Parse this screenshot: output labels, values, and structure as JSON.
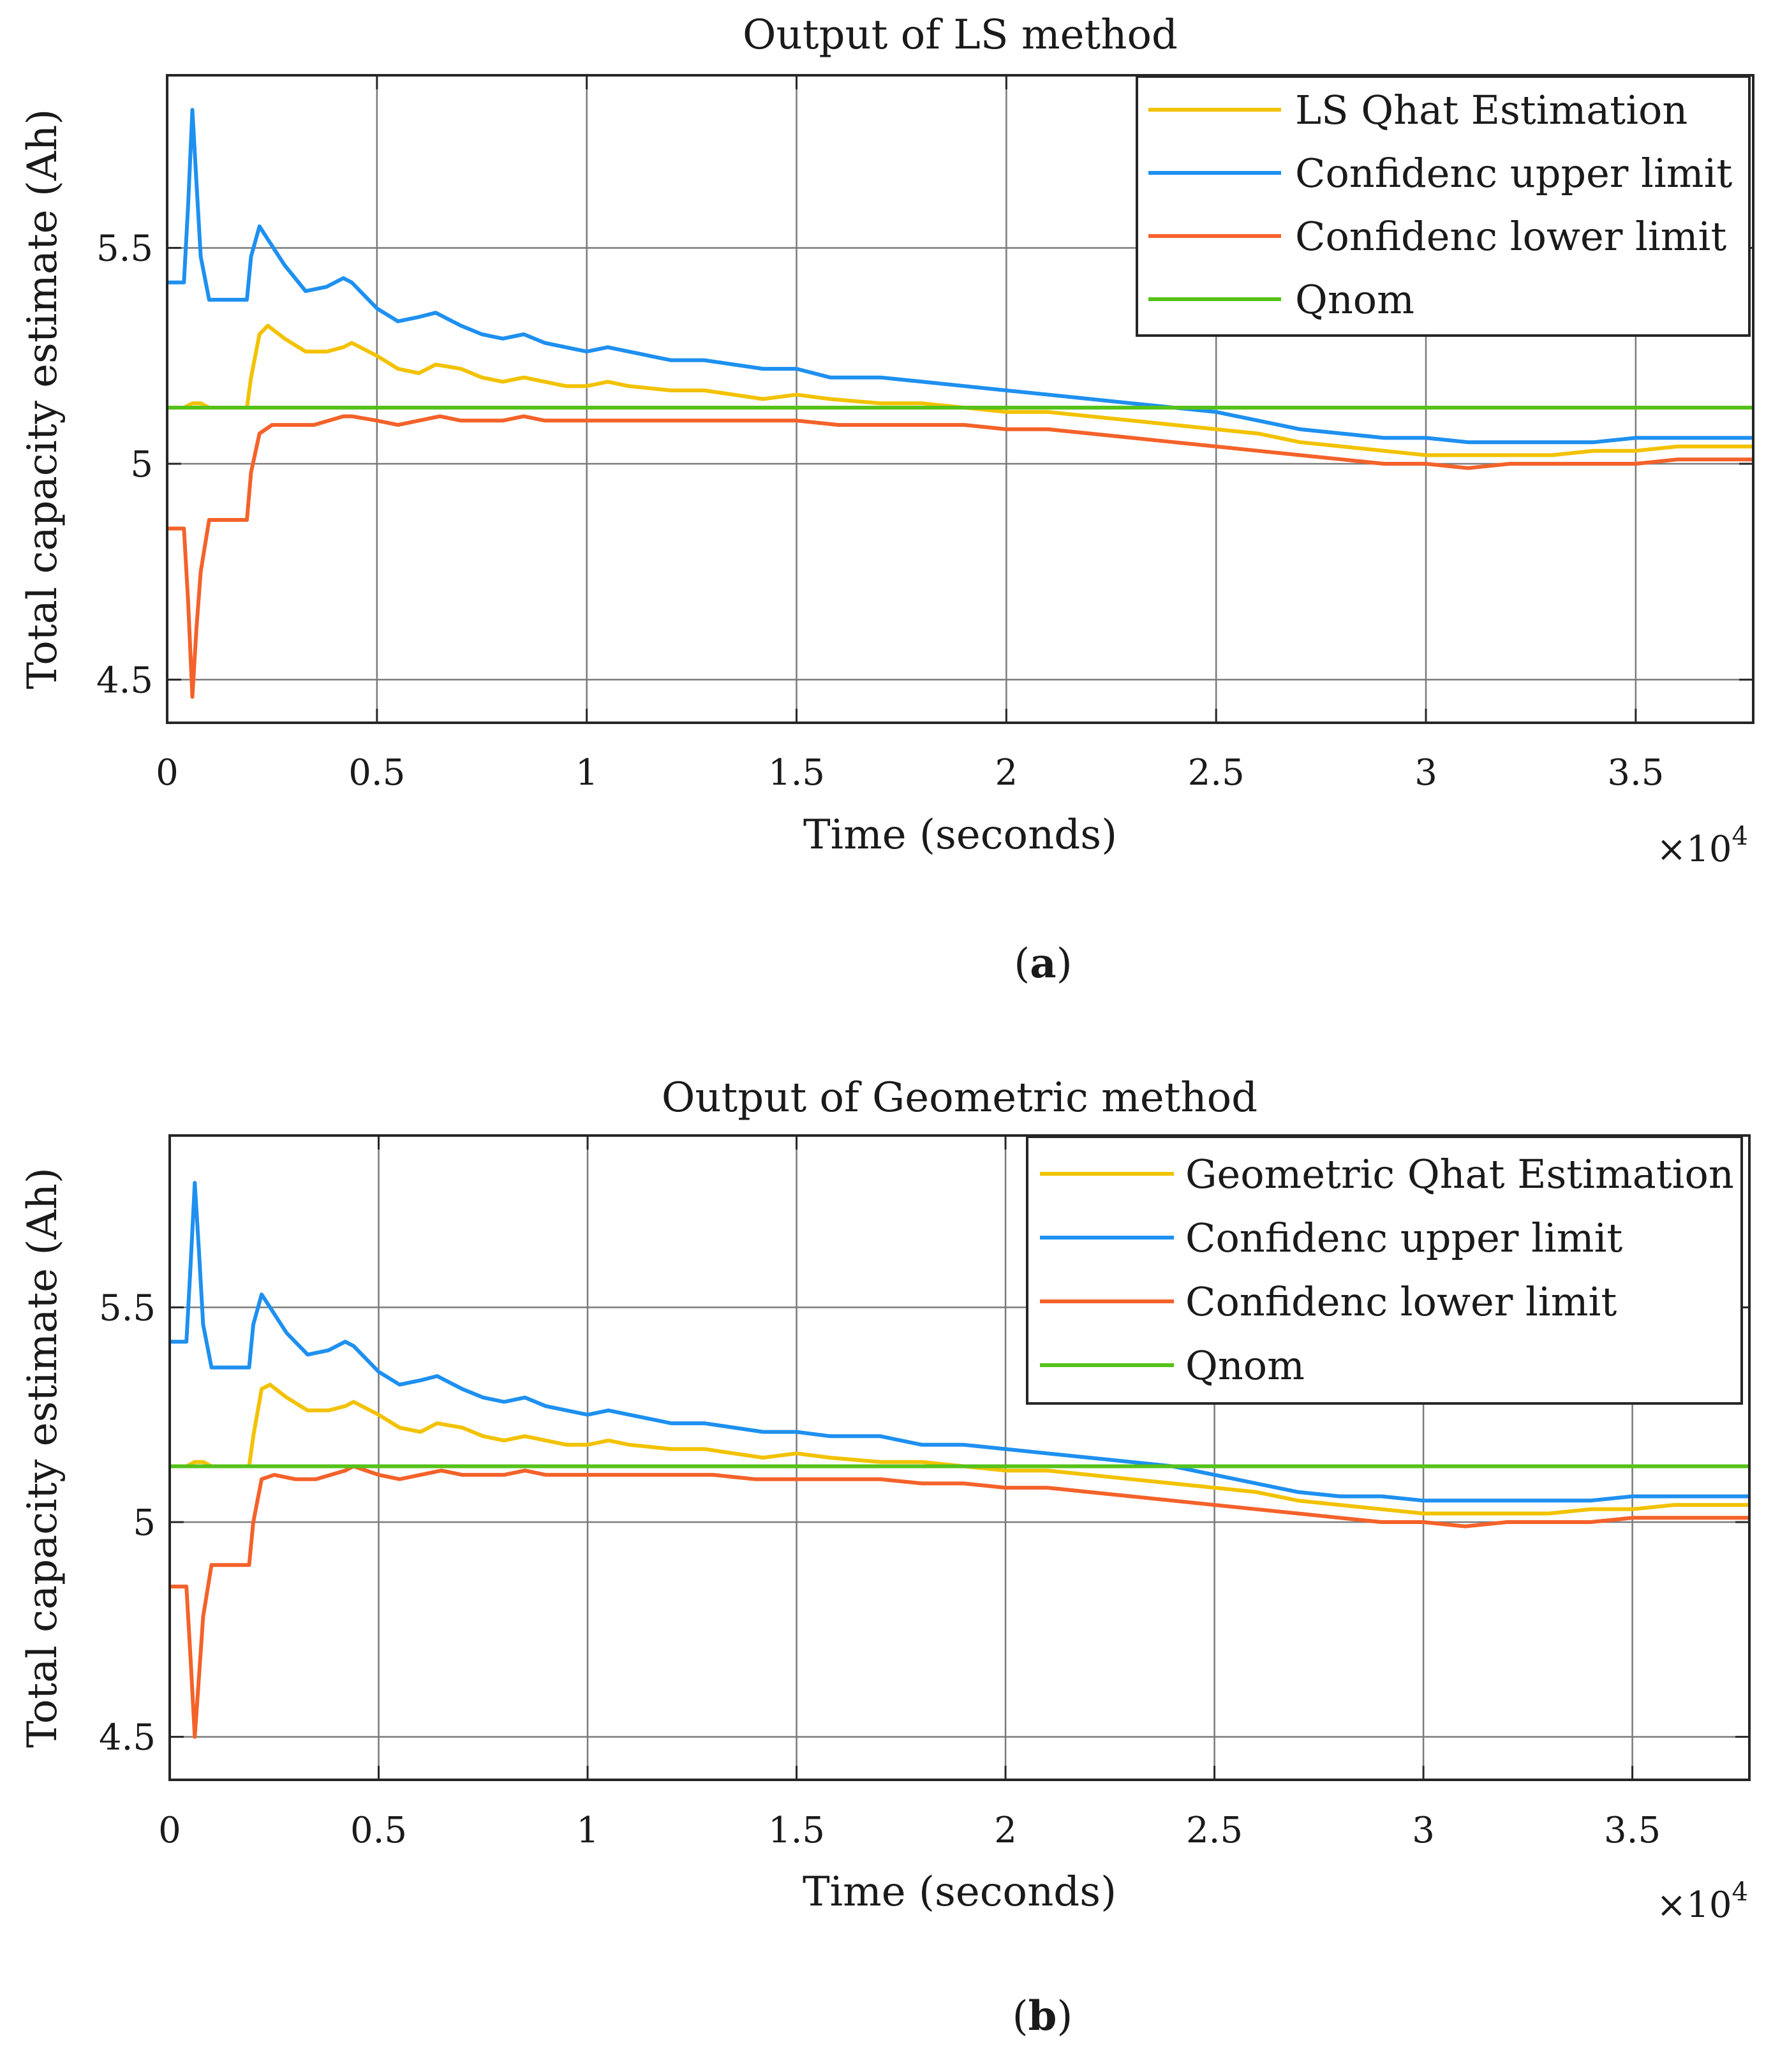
{
  "chart_data": [
    {
      "type": "line",
      "title": "Output of LS method",
      "xlabel": "Time (seconds)",
      "ylabel": "Total capacity estimate (Ah)",
      "x_multiplier": "×10",
      "x_multiplier_exp": "4",
      "xlim": [
        0,
        3.78
      ],
      "ylim": [
        4.4,
        5.9
      ],
      "xticks": [
        0,
        0.5,
        1,
        1.5,
        2,
        2.5,
        3,
        3.5
      ],
      "xtick_labels": [
        "0",
        "0.5",
        "1",
        "1.5",
        "2",
        "2.5",
        "3",
        "3.5"
      ],
      "yticks": [
        4.5,
        5,
        5.5
      ],
      "ytick_labels": [
        "4.5",
        "5",
        "5.5"
      ],
      "grid": true,
      "legend_position": "top-right",
      "caption_open": "(",
      "caption_letter": "a",
      "caption_close": ")",
      "series": [
        {
          "name": "LS Qhat Estimation",
          "color": "#f2c200",
          "x": [
            0,
            0.04,
            0.06,
            0.08,
            0.1,
            0.15,
            0.19,
            0.2,
            0.22,
            0.24,
            0.28,
            0.33,
            0.38,
            0.42,
            0.44,
            0.5,
            0.55,
            0.6,
            0.64,
            0.7,
            0.75,
            0.8,
            0.85,
            0.9,
            0.95,
            1.0,
            1.05,
            1.1,
            1.2,
            1.28,
            1.35,
            1.42,
            1.5,
            1.58,
            1.7,
            1.8,
            1.9,
            2.0,
            2.1,
            2.2,
            2.3,
            2.4,
            2.5,
            2.6,
            2.7,
            2.8,
            2.9,
            3.0,
            3.1,
            3.2,
            3.3,
            3.4,
            3.5,
            3.6,
            3.7,
            3.78
          ],
          "y": [
            5.13,
            5.13,
            5.14,
            5.14,
            5.13,
            5.13,
            5.13,
            5.2,
            5.3,
            5.32,
            5.29,
            5.26,
            5.26,
            5.27,
            5.28,
            5.25,
            5.22,
            5.21,
            5.23,
            5.22,
            5.2,
            5.19,
            5.2,
            5.19,
            5.18,
            5.18,
            5.19,
            5.18,
            5.17,
            5.17,
            5.16,
            5.15,
            5.16,
            5.15,
            5.14,
            5.14,
            5.13,
            5.12,
            5.12,
            5.11,
            5.1,
            5.09,
            5.08,
            5.07,
            5.05,
            5.04,
            5.03,
            5.02,
            5.02,
            5.02,
            5.02,
            5.03,
            5.03,
            5.04,
            5.04,
            5.04
          ]
        },
        {
          "name": "Confidenc upper limit",
          "color": "#1e90f0",
          "x": [
            0,
            0.04,
            0.05,
            0.06,
            0.07,
            0.08,
            0.1,
            0.12,
            0.15,
            0.19,
            0.2,
            0.22,
            0.24,
            0.28,
            0.33,
            0.38,
            0.42,
            0.44,
            0.5,
            0.55,
            0.6,
            0.64,
            0.7,
            0.75,
            0.8,
            0.85,
            0.9,
            0.95,
            1.0,
            1.05,
            1.1,
            1.2,
            1.28,
            1.35,
            1.42,
            1.5,
            1.58,
            1.7,
            1.8,
            1.9,
            2.0,
            2.1,
            2.2,
            2.3,
            2.4,
            2.5,
            2.6,
            2.7,
            2.8,
            2.9,
            3.0,
            3.1,
            3.2,
            3.3,
            3.4,
            3.5,
            3.6,
            3.7,
            3.78
          ],
          "y": [
            5.42,
            5.42,
            5.6,
            5.82,
            5.65,
            5.48,
            5.38,
            5.38,
            5.38,
            5.38,
            5.48,
            5.55,
            5.52,
            5.46,
            5.4,
            5.41,
            5.43,
            5.42,
            5.36,
            5.33,
            5.34,
            5.35,
            5.32,
            5.3,
            5.29,
            5.3,
            5.28,
            5.27,
            5.26,
            5.27,
            5.26,
            5.24,
            5.24,
            5.23,
            5.22,
            5.22,
            5.2,
            5.2,
            5.19,
            5.18,
            5.17,
            5.16,
            5.15,
            5.14,
            5.13,
            5.12,
            5.1,
            5.08,
            5.07,
            5.06,
            5.06,
            5.05,
            5.05,
            5.05,
            5.05,
            5.06,
            5.06,
            5.06,
            5.06
          ]
        },
        {
          "name": "Confidenc lower limit",
          "color": "#f4622a",
          "x": [
            0,
            0.04,
            0.05,
            0.06,
            0.07,
            0.08,
            0.1,
            0.12,
            0.15,
            0.19,
            0.2,
            0.22,
            0.25,
            0.3,
            0.35,
            0.42,
            0.44,
            0.5,
            0.55,
            0.6,
            0.65,
            0.7,
            0.8,
            0.85,
            0.9,
            1.0,
            1.1,
            1.2,
            1.3,
            1.4,
            1.5,
            1.6,
            1.7,
            1.8,
            1.9,
            2.0,
            2.1,
            2.2,
            2.3,
            2.4,
            2.5,
            2.6,
            2.7,
            2.8,
            2.9,
            3.0,
            3.1,
            3.2,
            3.3,
            3.4,
            3.5,
            3.6,
            3.7,
            3.78
          ],
          "y": [
            4.85,
            4.85,
            4.68,
            4.46,
            4.62,
            4.75,
            4.87,
            4.87,
            4.87,
            4.87,
            4.98,
            5.07,
            5.09,
            5.09,
            5.09,
            5.11,
            5.11,
            5.1,
            5.09,
            5.1,
            5.11,
            5.1,
            5.1,
            5.11,
            5.1,
            5.1,
            5.1,
            5.1,
            5.1,
            5.1,
            5.1,
            5.09,
            5.09,
            5.09,
            5.09,
            5.08,
            5.08,
            5.07,
            5.06,
            5.05,
            5.04,
            5.03,
            5.02,
            5.01,
            5.0,
            5.0,
            4.99,
            5.0,
            5.0,
            5.0,
            5.0,
            5.01,
            5.01,
            5.01
          ]
        },
        {
          "name": "Qnom",
          "color": "#55c21a",
          "x": [
            0,
            3.78
          ],
          "y": [
            5.13,
            5.13
          ]
        }
      ]
    },
    {
      "type": "line",
      "title": "Output of Geometric method",
      "xlabel": "Time (seconds)",
      "ylabel": "Total capacity estimate (Ah)",
      "x_multiplier": "×10",
      "x_multiplier_exp": "4",
      "xlim": [
        0,
        3.78
      ],
      "ylim": [
        4.4,
        5.9
      ],
      "xticks": [
        0,
        0.5,
        1,
        1.5,
        2,
        2.5,
        3,
        3.5
      ],
      "xtick_labels": [
        "0",
        "0.5",
        "1",
        "1.5",
        "2",
        "2.5",
        "3",
        "3.5"
      ],
      "yticks": [
        4.5,
        5,
        5.5
      ],
      "ytick_labels": [
        "4.5",
        "5",
        "5.5"
      ],
      "grid": true,
      "legend_position": "top-right",
      "caption_open": "(",
      "caption_letter": "b",
      "caption_close": ")",
      "series": [
        {
          "name": "Geometric Qhat Estimation",
          "color": "#f2c200",
          "x": [
            0,
            0.04,
            0.06,
            0.08,
            0.1,
            0.15,
            0.19,
            0.2,
            0.22,
            0.24,
            0.28,
            0.33,
            0.38,
            0.42,
            0.44,
            0.5,
            0.55,
            0.6,
            0.64,
            0.7,
            0.75,
            0.8,
            0.85,
            0.9,
            0.95,
            1.0,
            1.05,
            1.1,
            1.2,
            1.28,
            1.35,
            1.42,
            1.5,
            1.58,
            1.7,
            1.8,
            1.9,
            2.0,
            2.1,
            2.2,
            2.3,
            2.4,
            2.5,
            2.6,
            2.7,
            2.8,
            2.9,
            3.0,
            3.1,
            3.2,
            3.3,
            3.4,
            3.5,
            3.6,
            3.7,
            3.78
          ],
          "y": [
            5.13,
            5.13,
            5.14,
            5.14,
            5.13,
            5.13,
            5.13,
            5.2,
            5.31,
            5.32,
            5.29,
            5.26,
            5.26,
            5.27,
            5.28,
            5.25,
            5.22,
            5.21,
            5.23,
            5.22,
            5.2,
            5.19,
            5.2,
            5.19,
            5.18,
            5.18,
            5.19,
            5.18,
            5.17,
            5.17,
            5.16,
            5.15,
            5.16,
            5.15,
            5.14,
            5.14,
            5.13,
            5.12,
            5.12,
            5.11,
            5.1,
            5.09,
            5.08,
            5.07,
            5.05,
            5.04,
            5.03,
            5.02,
            5.02,
            5.02,
            5.02,
            5.03,
            5.03,
            5.04,
            5.04,
            5.04
          ]
        },
        {
          "name": "Confidenc upper limit",
          "color": "#1e90f0",
          "x": [
            0,
            0.04,
            0.05,
            0.06,
            0.07,
            0.08,
            0.1,
            0.12,
            0.15,
            0.19,
            0.2,
            0.22,
            0.24,
            0.28,
            0.33,
            0.38,
            0.42,
            0.44,
            0.5,
            0.55,
            0.6,
            0.64,
            0.7,
            0.75,
            0.8,
            0.85,
            0.9,
            0.95,
            1.0,
            1.05,
            1.1,
            1.2,
            1.28,
            1.35,
            1.42,
            1.5,
            1.58,
            1.7,
            1.8,
            1.9,
            2.0,
            2.1,
            2.2,
            2.3,
            2.4,
            2.5,
            2.6,
            2.7,
            2.8,
            2.9,
            3.0,
            3.1,
            3.2,
            3.3,
            3.4,
            3.5,
            3.6,
            3.7,
            3.78
          ],
          "y": [
            5.42,
            5.42,
            5.6,
            5.79,
            5.63,
            5.46,
            5.36,
            5.36,
            5.36,
            5.36,
            5.46,
            5.53,
            5.5,
            5.44,
            5.39,
            5.4,
            5.42,
            5.41,
            5.35,
            5.32,
            5.33,
            5.34,
            5.31,
            5.29,
            5.28,
            5.29,
            5.27,
            5.26,
            5.25,
            5.26,
            5.25,
            5.23,
            5.23,
            5.22,
            5.21,
            5.21,
            5.2,
            5.2,
            5.18,
            5.18,
            5.17,
            5.16,
            5.15,
            5.14,
            5.13,
            5.11,
            5.09,
            5.07,
            5.06,
            5.06,
            5.05,
            5.05,
            5.05,
            5.05,
            5.05,
            5.06,
            5.06,
            5.06,
            5.06
          ]
        },
        {
          "name": "Confidenc lower limit",
          "color": "#f4622a",
          "x": [
            0,
            0.04,
            0.05,
            0.06,
            0.07,
            0.08,
            0.1,
            0.12,
            0.15,
            0.19,
            0.2,
            0.22,
            0.25,
            0.3,
            0.35,
            0.42,
            0.44,
            0.5,
            0.55,
            0.6,
            0.65,
            0.7,
            0.8,
            0.85,
            0.9,
            1.0,
            1.1,
            1.2,
            1.3,
            1.4,
            1.5,
            1.6,
            1.7,
            1.8,
            1.9,
            2.0,
            2.1,
            2.2,
            2.3,
            2.4,
            2.5,
            2.6,
            2.7,
            2.8,
            2.9,
            3.0,
            3.1,
            3.2,
            3.3,
            3.4,
            3.5,
            3.6,
            3.7,
            3.78
          ],
          "y": [
            4.85,
            4.85,
            4.68,
            4.5,
            4.64,
            4.78,
            4.9,
            4.9,
            4.9,
            4.9,
            5.0,
            5.1,
            5.11,
            5.1,
            5.1,
            5.12,
            5.13,
            5.11,
            5.1,
            5.11,
            5.12,
            5.11,
            5.11,
            5.12,
            5.11,
            5.11,
            5.11,
            5.11,
            5.11,
            5.1,
            5.1,
            5.1,
            5.1,
            5.09,
            5.09,
            5.08,
            5.08,
            5.07,
            5.06,
            5.05,
            5.04,
            5.03,
            5.02,
            5.01,
            5.0,
            5.0,
            4.99,
            5.0,
            5.0,
            5.0,
            5.01,
            5.01,
            5.01,
            5.01
          ]
        },
        {
          "name": "Qnom",
          "color": "#55c21a",
          "x": [
            0,
            3.78
          ],
          "y": [
            5.13,
            5.13
          ]
        }
      ]
    }
  ]
}
